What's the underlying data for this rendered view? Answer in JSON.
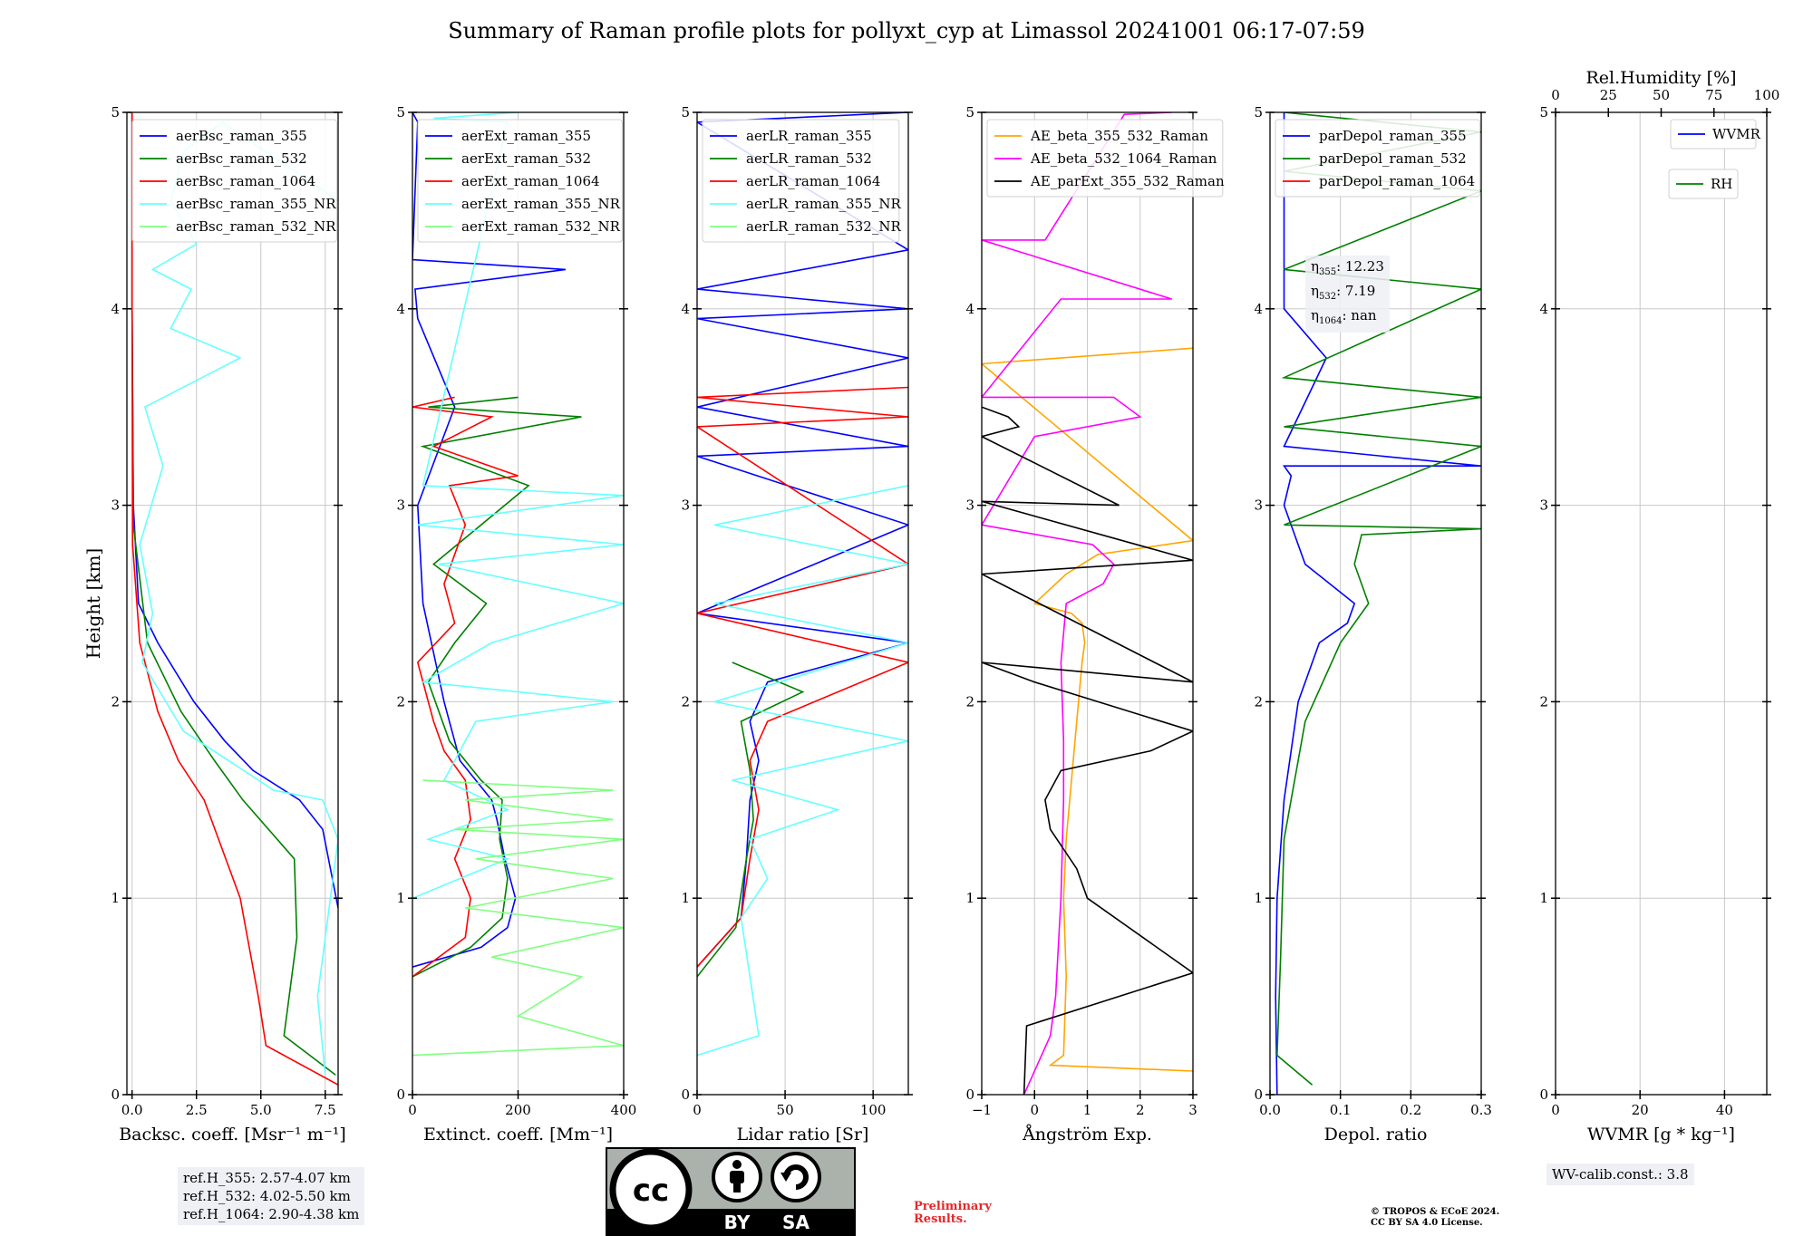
{
  "title": "Summary of Raman profile plots for pollyxt_cyp at Limassol 20241001 06:17-07:59",
  "ylabel": "Height [km]",
  "ref_heights": [
    "ref.H_355: 2.57-4.07 km",
    "ref.H_532: 4.02-5.50 km",
    "ref.H_1064: 2.90-4.38 km"
  ],
  "eta": {
    "e355": "12.23",
    "e532": "7.19",
    "e1064": "nan"
  },
  "wv_calib": "WV-calib.const.: 3.8",
  "preliminary": [
    "Preliminary",
    "Results."
  ],
  "copyright": [
    "© TROPOS & ECoE 2024.",
    "CC BY SA 4.0 License."
  ],
  "license_badge": {
    "left": "BY",
    "right": "SA",
    "logo": "cc-icon"
  },
  "colors": {
    "blue": "#0000ff",
    "green": "#008000",
    "red": "#ff0000",
    "cyan": "#66ffff",
    "lightgreen": "#80ff80",
    "orange": "#ffa500",
    "magenta": "#ff00ff",
    "black": "#000000"
  },
  "chart_data": [
    {
      "type": "line",
      "xlabel": "Backsc. coeff. [Msr⁻¹ m⁻¹]",
      "xlim": [
        -0.2,
        8.0
      ],
      "ylim": [
        0,
        5
      ],
      "xticks": [
        0,
        2.5,
        5,
        7.5
      ],
      "xticklabels": [
        "0.0",
        "2.5",
        "5.0",
        "7.5"
      ],
      "yticks": [
        0,
        1,
        2,
        3,
        4,
        5
      ],
      "grid": true,
      "legend": "top-left",
      "series": [
        {
          "name": "aerBsc_raman_355",
          "color": "#0000ff",
          "x": [
            8.0,
            7.4,
            6.5,
            4.7,
            3.6,
            2.4,
            1.0,
            0.25,
            0.05,
            0.0,
            0.0
          ],
          "y": [
            0.95,
            1.35,
            1.5,
            1.65,
            1.8,
            2.0,
            2.3,
            2.5,
            3.0,
            4.0,
            5.0
          ]
        },
        {
          "name": "aerBsc_raman_532",
          "color": "#008000",
          "x": [
            7.9,
            5.9,
            6.4,
            6.3,
            4.3,
            3.2,
            1.9,
            0.6,
            0.05,
            0.0,
            0.0
          ],
          "y": [
            0.1,
            0.3,
            0.8,
            1.2,
            1.5,
            1.7,
            1.95,
            2.3,
            2.9,
            4.0,
            5.0
          ]
        },
        {
          "name": "aerBsc_raman_1064",
          "color": "#ff0000",
          "x": [
            8.0,
            5.2,
            4.9,
            4.2,
            2.8,
            1.8,
            1.0,
            0.3,
            0.02,
            0.0,
            0.0
          ],
          "y": [
            0.05,
            0.25,
            0.5,
            1.0,
            1.5,
            1.7,
            1.95,
            2.3,
            2.8,
            4.0,
            5.0
          ]
        },
        {
          "name": "aerBsc_raman_355_NR",
          "color": "#66ffff",
          "x": [
            7.5,
            7.2,
            8.0,
            7.4,
            5.5,
            2.0,
            0.4,
            0.8,
            0.3,
            1.2,
            0.5,
            4.2,
            1.5,
            2.3,
            0.8,
            2.5,
            1.5,
            2.0,
            3.5,
            8.0
          ],
          "y": [
            0.1,
            0.5,
            1.3,
            1.5,
            1.55,
            1.85,
            2.2,
            2.45,
            2.8,
            3.2,
            3.5,
            3.75,
            3.9,
            4.1,
            4.2,
            4.33,
            4.55,
            4.8,
            4.95,
            4.55
          ]
        },
        {
          "name": "aerBsc_raman_532_NR",
          "color": "#80ff80",
          "x": [
            0.0
          ],
          "y": [
            0.0
          ]
        }
      ]
    },
    {
      "type": "line",
      "xlabel": "Extinct. coeff. [Mm⁻¹]",
      "xlim": [
        0,
        400
      ],
      "ylim": [
        0,
        5
      ],
      "xticks": [
        0,
        200,
        400
      ],
      "xticklabels": [
        "0",
        "200",
        "400"
      ],
      "yticks": [
        0,
        1,
        2,
        3,
        4,
        5
      ],
      "grid": true,
      "legend": "top-left",
      "series": [
        {
          "name": "aerExt_raman_355",
          "color": "#0000ff",
          "x": [
            0,
            130,
            180,
            195,
            175,
            160,
            150,
            90,
            60,
            20,
            10,
            80,
            10,
            5,
            290,
            0,
            10,
            0
          ],
          "y": [
            0.65,
            0.75,
            0.85,
            1.0,
            1.2,
            1.4,
            1.5,
            1.7,
            2.0,
            2.5,
            3.0,
            3.5,
            3.95,
            4.1,
            4.2,
            4.25,
            4.95,
            5.0
          ]
        },
        {
          "name": "aerExt_raman_532",
          "color": "#008000",
          "x": [
            0,
            110,
            170,
            180,
            165,
            170,
            130,
            70,
            30,
            80,
            140,
            40,
            220,
            20,
            320,
            30,
            200
          ],
          "y": [
            0.6,
            0.75,
            0.9,
            1.1,
            1.3,
            1.5,
            1.6,
            1.8,
            2.1,
            2.3,
            2.5,
            2.7,
            3.1,
            3.3,
            3.45,
            3.5,
            3.55
          ]
        },
        {
          "name": "aerExt_raman_1064",
          "color": "#ff0000",
          "x": [
            0,
            100,
            110,
            80,
            110,
            100,
            60,
            40,
            10,
            80,
            60,
            100,
            70,
            200,
            40,
            150,
            0,
            80
          ],
          "y": [
            0.6,
            0.8,
            1.0,
            1.2,
            1.4,
            1.6,
            1.75,
            1.9,
            2.2,
            2.4,
            2.6,
            2.9,
            3.1,
            3.15,
            3.3,
            3.45,
            3.5,
            3.55
          ]
        },
        {
          "name": "aerExt_raman_355_NR",
          "color": "#66ffff",
          "x": [
            0,
            180,
            30,
            180,
            60,
            120,
            380,
            20,
            150,
            400,
            50,
            400,
            10,
            400,
            20,
            180,
            40,
            200
          ],
          "y": [
            1.0,
            1.2,
            1.3,
            1.45,
            1.6,
            1.9,
            2.0,
            2.1,
            2.3,
            2.5,
            2.7,
            2.8,
            2.9,
            3.05,
            3.1,
            4.95,
            4.97,
            5.0
          ]
        },
        {
          "name": "aerExt_raman_532_NR",
          "color": "#80ff80",
          "x": [
            0,
            400,
            200,
            320,
            150,
            400,
            100,
            380,
            120,
            400,
            80,
            380,
            100,
            380,
            20
          ],
          "y": [
            0.2,
            0.25,
            0.4,
            0.6,
            0.7,
            0.85,
            0.95,
            1.1,
            1.2,
            1.3,
            1.35,
            1.4,
            1.5,
            1.55,
            1.6
          ]
        }
      ]
    },
    {
      "type": "line",
      "xlabel": "Lidar ratio [Sr]",
      "xlim": [
        0,
        120
      ],
      "ylim": [
        0,
        5
      ],
      "xticks": [
        0,
        50,
        100
      ],
      "xticklabels": [
        "0",
        "50",
        "100"
      ],
      "yticks": [
        0,
        1,
        2,
        3,
        4,
        5
      ],
      "grid": true,
      "legend": "top-left",
      "series": [
        {
          "name": "aerLR_raman_355",
          "color": "#0000ff",
          "x": [
            0,
            25,
            28,
            30,
            35,
            30,
            40,
            120,
            0,
            120,
            0,
            120,
            0,
            120,
            0,
            120,
            0,
            120,
            0,
            120
          ],
          "y": [
            0.65,
            0.9,
            1.2,
            1.5,
            1.7,
            1.9,
            2.1,
            2.3,
            2.45,
            2.9,
            3.25,
            3.3,
            3.5,
            3.75,
            3.95,
            4.0,
            4.1,
            4.3,
            4.95,
            5.0
          ]
        },
        {
          "name": "aerLR_raman_532",
          "color": "#008000",
          "x": [
            0,
            22,
            28,
            32,
            30,
            25,
            60,
            20
          ],
          "y": [
            0.6,
            0.85,
            1.2,
            1.4,
            1.65,
            1.9,
            2.05,
            2.2
          ]
        },
        {
          "name": "aerLR_raman_1064",
          "color": "#ff0000",
          "x": [
            0,
            25,
            30,
            35,
            30,
            40,
            120,
            0,
            120,
            0,
            120,
            0,
            120
          ],
          "y": [
            0.65,
            0.9,
            1.2,
            1.45,
            1.7,
            1.9,
            2.2,
            2.45,
            2.7,
            3.4,
            3.45,
            3.55,
            3.6
          ]
        },
        {
          "name": "aerLR_raman_355_NR",
          "color": "#66ffff",
          "x": [
            0,
            35,
            30,
            25,
            40,
            30,
            80,
            20,
            120,
            10,
            120,
            10,
            120,
            10,
            120
          ],
          "y": [
            0.2,
            0.3,
            0.6,
            0.9,
            1.1,
            1.3,
            1.45,
            1.6,
            1.8,
            2.0,
            2.3,
            2.5,
            2.7,
            2.9,
            3.1
          ]
        },
        {
          "name": "aerLR_raman_532_NR",
          "color": "#80ff80",
          "x": [
            0.0
          ],
          "y": [
            0.0
          ]
        }
      ]
    },
    {
      "type": "line",
      "xlabel": "Ångström Exp.",
      "xlim": [
        -1,
        3
      ],
      "ylim": [
        0,
        5
      ],
      "xticks": [
        -1,
        0,
        1,
        2,
        3
      ],
      "xticklabels": [
        "−1",
        "0",
        "1",
        "2",
        "3"
      ],
      "yticks": [
        0,
        1,
        2,
        3,
        4,
        5
      ],
      "grid": true,
      "legend": "top-left",
      "series": [
        {
          "name": "AE_beta_355_532_Raman",
          "color": "#ffa500",
          "x": [
            3.0,
            0.3,
            0.55,
            0.6,
            0.55,
            0.6,
            0.7,
            0.8,
            0.9,
            0.95,
            0.9,
            0.7,
            0.0,
            0.6,
            1.2,
            3.0,
            -1.0,
            3.0
          ],
          "y": [
            0.12,
            0.15,
            0.2,
            0.6,
            1.0,
            1.3,
            1.6,
            1.9,
            2.2,
            2.3,
            2.4,
            2.45,
            2.5,
            2.65,
            2.75,
            2.82,
            3.72,
            3.8
          ]
        },
        {
          "name": "AE_beta_532_1064_Raman",
          "color": "#ff00ff",
          "x": [
            -0.2,
            0.3,
            0.4,
            0.5,
            0.55,
            0.55,
            0.5,
            0.6,
            1.3,
            1.5,
            1.1,
            -1.0,
            0.0,
            2.0,
            1.5,
            -1.0,
            0.5,
            2.6,
            -1.0,
            0.2,
            1.7,
            2.6
          ],
          "y": [
            0.0,
            0.3,
            0.5,
            1.0,
            1.5,
            1.8,
            2.2,
            2.5,
            2.6,
            2.7,
            2.8,
            2.9,
            3.35,
            3.45,
            3.55,
            3.55,
            4.05,
            4.05,
            4.35,
            4.35,
            4.99,
            5.0
          ]
        },
        {
          "name": "AE_parExt_355_532_Raman",
          "color": "#000000",
          "x": [
            -0.2,
            -0.15,
            3.0,
            3.0,
            1.0,
            0.8,
            0.3,
            0.2,
            0.5,
            2.2,
            3.0,
            0.0,
            -1.0,
            3.0,
            -1.0,
            3.0,
            -1.0,
            1.6,
            -1.0,
            -0.3,
            -0.5,
            -1.0
          ],
          "y": [
            0.0,
            0.35,
            0.62,
            0.62,
            1.0,
            1.15,
            1.35,
            1.5,
            1.65,
            1.75,
            1.85,
            2.1,
            2.2,
            2.1,
            2.65,
            2.72,
            3.02,
            3.0,
            3.35,
            3.4,
            3.45,
            3.5
          ]
        }
      ]
    },
    {
      "type": "line",
      "xlabel": "Depol. ratio",
      "xlim": [
        0,
        0.3
      ],
      "ylim": [
        0,
        5
      ],
      "xticks": [
        0,
        0.1,
        0.2,
        0.3
      ],
      "xticklabels": [
        "0.0",
        "0.1",
        "0.2",
        "0.3"
      ],
      "yticks": [
        0,
        1,
        2,
        3,
        4,
        5
      ],
      "grid": true,
      "legend": "top-left",
      "series": [
        {
          "name": "parDepol_raman_355",
          "color": "#0000ff",
          "x": [
            0.01,
            0.008,
            0.01,
            0.02,
            0.04,
            0.07,
            0.11,
            0.12,
            0.05,
            0.02,
            0.03,
            0.02,
            0.3,
            0.02,
            0.08,
            0.02,
            0.02
          ],
          "y": [
            0.0,
            0.5,
            1.0,
            1.5,
            2.0,
            2.3,
            2.4,
            2.5,
            2.7,
            3.0,
            3.15,
            3.2,
            3.2,
            3.3,
            3.75,
            4.0,
            5.0
          ]
        },
        {
          "name": "parDepol_raman_532",
          "color": "#008000",
          "x": [
            0.06,
            0.01,
            0.015,
            0.02,
            0.05,
            0.1,
            0.14,
            0.12,
            0.13,
            0.3,
            0.02,
            0.3,
            0.02,
            0.3,
            0.02,
            0.3,
            0.02,
            0.3,
            0.02,
            0.3,
            0.02
          ],
          "y": [
            0.05,
            0.2,
            0.7,
            1.3,
            1.9,
            2.3,
            2.5,
            2.7,
            2.85,
            2.88,
            2.9,
            3.3,
            3.4,
            3.55,
            3.65,
            4.1,
            4.2,
            4.6,
            4.7,
            4.9,
            5.0
          ]
        },
        {
          "name": "parDepol_raman_1064",
          "color": "#ff0000",
          "x": [
            0.0
          ],
          "y": [
            0.0
          ]
        }
      ]
    },
    {
      "type": "line",
      "xlabel": "WVMR [g * kg⁻¹]",
      "x2label": "Rel.Humidity [%]",
      "xlim": [
        0,
        50
      ],
      "ylim": [
        0,
        5
      ],
      "x2lim": [
        0,
        100
      ],
      "xticks": [
        0,
        20,
        40
      ],
      "xticklabels": [
        "0",
        "20",
        "40"
      ],
      "x2ticks": [
        0,
        25,
        50,
        75,
        100
      ],
      "x2ticklabels": [
        "0",
        "25",
        "50",
        "75",
        "100"
      ],
      "yticks": [
        0,
        1,
        2,
        3,
        4,
        5
      ],
      "grid": true,
      "legend": "top-right",
      "series": [
        {
          "name": "WVMR",
          "color": "#0000ff",
          "x": [],
          "y": []
        },
        {
          "name": "RH",
          "color": "#008000",
          "x": [],
          "y": []
        }
      ]
    }
  ]
}
